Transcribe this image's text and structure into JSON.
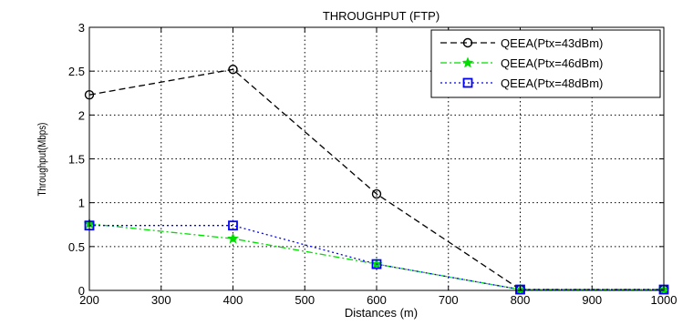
{
  "chart_data": {
    "type": "line",
    "title": "THROUGHPUT (FTP)",
    "xlabel": "Distances (m)",
    "ylabel": "Throughput(Mbps)",
    "xlim": [
      200,
      1000
    ],
    "ylim": [
      0,
      3
    ],
    "xticks": [
      200,
      300,
      400,
      500,
      600,
      700,
      800,
      900,
      1000
    ],
    "yticks": [
      0,
      0.5,
      1,
      1.5,
      2,
      2.5,
      3
    ],
    "xtick_labels": [
      "200",
      "300",
      "400",
      "500",
      "600",
      "700",
      "800",
      "900",
      "1000"
    ],
    "ytick_labels": [
      "0",
      "0.5",
      "1",
      "1.5",
      "2",
      "2.5",
      "3"
    ],
    "grid": true,
    "legend_position": "top-right",
    "series": [
      {
        "name": "QEEA(Ptx=43dBm)",
        "color": "#000000",
        "line_style": "dashed",
        "marker": "circle",
        "x": [
          200,
          400,
          600,
          800,
          1000
        ],
        "y": [
          2.23,
          2.52,
          1.1,
          0.01,
          0.01
        ]
      },
      {
        "name": "QEEA(Ptx=46dBm)",
        "color": "#00dd00",
        "line_style": "dash-dot",
        "marker": "star",
        "x": [
          200,
          400,
          600,
          800,
          1000
        ],
        "y": [
          0.76,
          0.59,
          0.3,
          0.01,
          0.01
        ]
      },
      {
        "name": "QEEA(Ptx=48dBm)",
        "color": "#0000ff",
        "line_style": "dotted",
        "marker": "square",
        "x": [
          200,
          400,
          600,
          800,
          1000
        ],
        "y": [
          0.74,
          0.74,
          0.3,
          0.01,
          0.01
        ]
      }
    ]
  }
}
